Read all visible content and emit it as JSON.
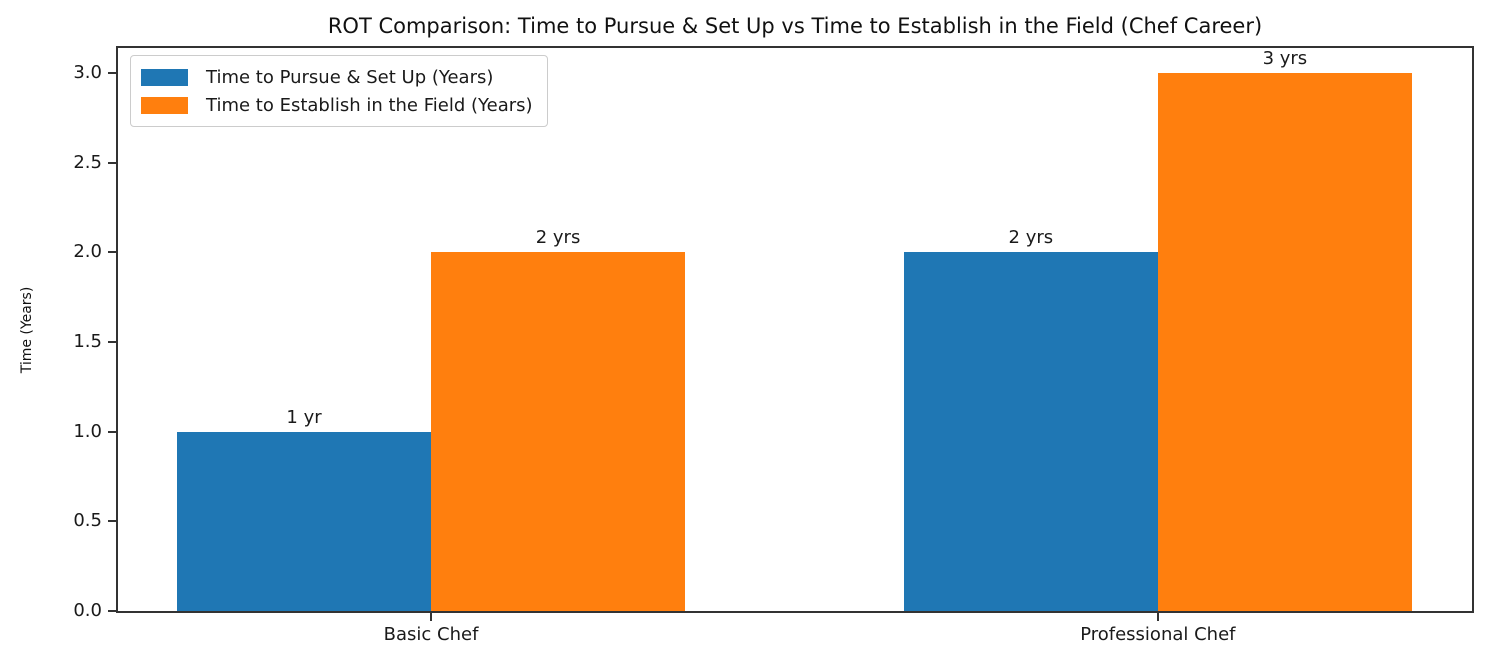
{
  "chart_data": {
    "type": "bar",
    "title": "ROT Comparison: Time to Pursue & Set Up vs Time to Establish in the Field (Chef Career)",
    "xlabel": "",
    "ylabel": "Time (Years)",
    "categories": [
      "Basic Chef",
      "Professional Chef"
    ],
    "series": [
      {
        "name": "Time to Pursue & Set Up (Years)",
        "color": "#1f77b4",
        "values": [
          1,
          2
        ],
        "bar_labels": [
          "1 yr",
          "2 yrs"
        ]
      },
      {
        "name": "Time to Establish in the Field (Years)",
        "color": "#ff7f0e",
        "values": [
          2,
          3
        ],
        "bar_labels": [
          "2 yrs",
          "3 yrs"
        ]
      }
    ],
    "ytick_labels": [
      "0.0",
      "0.5",
      "1.0",
      "1.5",
      "2.0",
      "2.5",
      "3.0"
    ],
    "ylim": [
      0,
      3.14
    ],
    "grid": false,
    "legend_position": "upper left",
    "bar_group_width": 0.35
  }
}
